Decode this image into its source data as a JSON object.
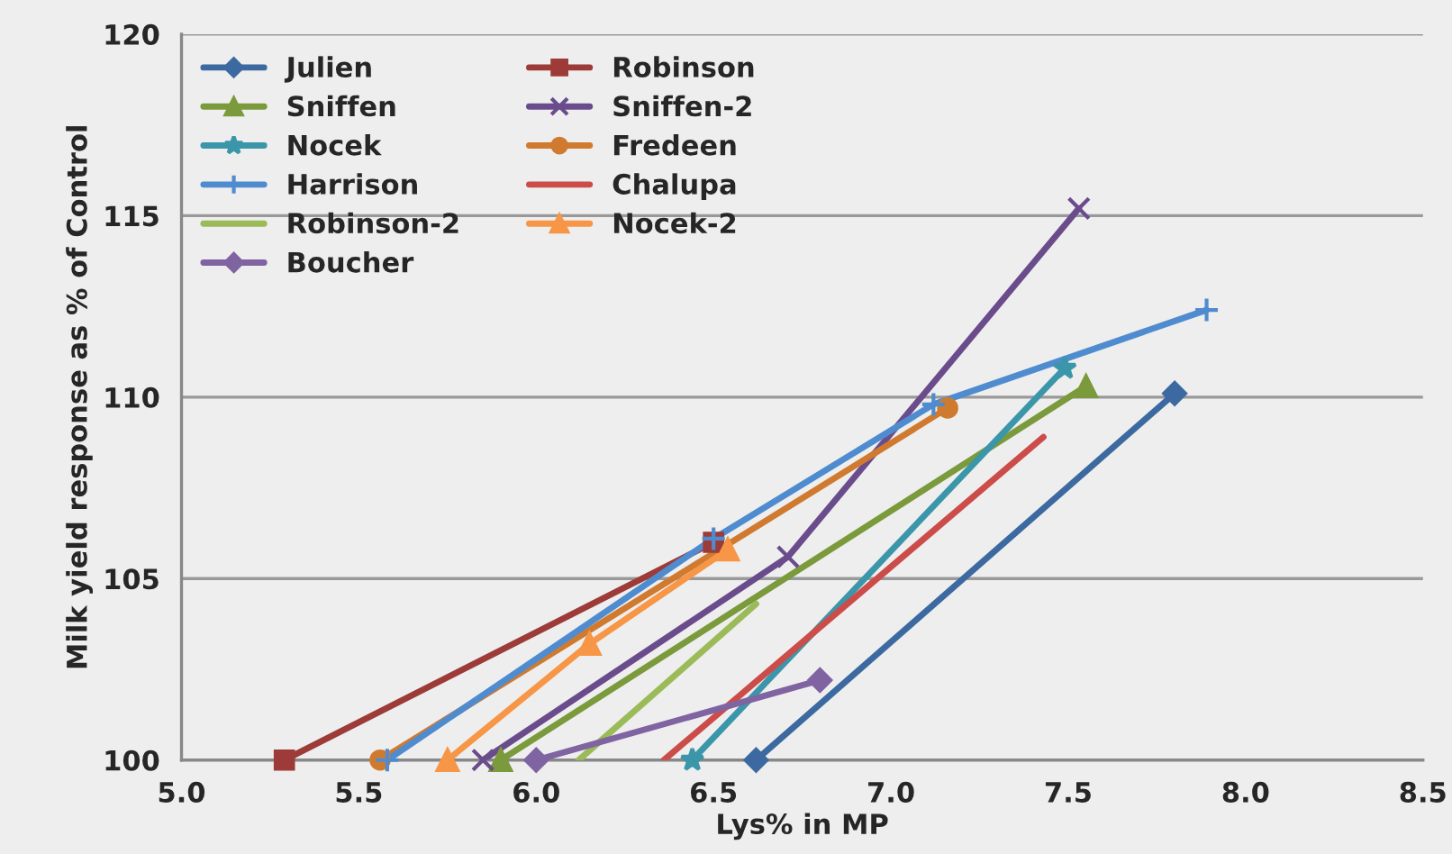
{
  "chart_data": {
    "type": "line",
    "xlabel": "Lys% in MP",
    "ylabel": "Milk yield response as % of Control",
    "xlim": [
      5.0,
      8.5
    ],
    "xticks": [
      {
        "value": 5.0,
        "label": "5.0"
      },
      {
        "value": 5.5,
        "label": "5.5"
      },
      {
        "value": 6.0,
        "label": "6.0"
      },
      {
        "value": 6.5,
        "label": "6.5"
      },
      {
        "value": 7.0,
        "label": "7.0"
      },
      {
        "value": 7.5,
        "label": "7.5"
      },
      {
        "value": 8.0,
        "label": "8.0"
      },
      {
        "value": 8.5,
        "label": "8.5"
      }
    ],
    "ylim": [
      100,
      120
    ],
    "yticks": [
      100,
      105,
      110,
      115,
      120
    ],
    "grid": "y",
    "legend": "top left",
    "series": [
      {
        "name": "Julien",
        "color": "#3c6aa0",
        "marker": "diamond",
        "x": [
          6.62,
          7.8
        ],
        "values": [
          100,
          110.1
        ]
      },
      {
        "name": "Robinson",
        "color": "#9c3b38",
        "marker": "square",
        "x": [
          5.29,
          6.5
        ],
        "values": [
          100,
          106.0
        ]
      },
      {
        "name": "Sniffen",
        "color": "#7a9a3c",
        "marker": "triangle",
        "x": [
          5.9,
          7.55
        ],
        "values": [
          100,
          110.3
        ]
      },
      {
        "name": "Sniffen-2",
        "color": "#6a4c8c",
        "marker": "cross",
        "x": [
          5.85,
          6.71,
          7.53
        ],
        "values": [
          100,
          105.6,
          115.2
        ]
      },
      {
        "name": "Nocek",
        "color": "#3b96aa",
        "marker": "star",
        "x": [
          6.44,
          7.49
        ],
        "values": [
          100,
          110.8
        ]
      },
      {
        "name": "Fredeen",
        "color": "#d07a30",
        "marker": "circle",
        "x": [
          5.56,
          7.16
        ],
        "values": [
          100,
          109.7
        ]
      },
      {
        "name": "Harrison",
        "color": "#4f8ccf",
        "marker": "plus",
        "x": [
          5.58,
          6.5,
          7.12,
          7.89
        ],
        "values": [
          100,
          106.1,
          109.8,
          112.4
        ]
      },
      {
        "name": "Chalupa",
        "color": "#cc4c4a",
        "marker": "none",
        "x": [
          6.36,
          7.43
        ],
        "values": [
          100,
          108.9
        ]
      },
      {
        "name": "Robinson-2",
        "color": "#9bbb59",
        "marker": "none",
        "x": [
          6.12,
          6.62
        ],
        "values": [
          100,
          104.3
        ]
      },
      {
        "name": "Nocek-2",
        "color": "#f79646",
        "marker": "triangle",
        "x": [
          5.75,
          6.15,
          6.54
        ],
        "values": [
          100,
          103.2,
          105.8
        ]
      },
      {
        "name": "Boucher",
        "color": "#8064a2",
        "marker": "diamond",
        "x": [
          6.0,
          6.8
        ],
        "values": [
          100,
          102.2
        ]
      }
    ]
  }
}
